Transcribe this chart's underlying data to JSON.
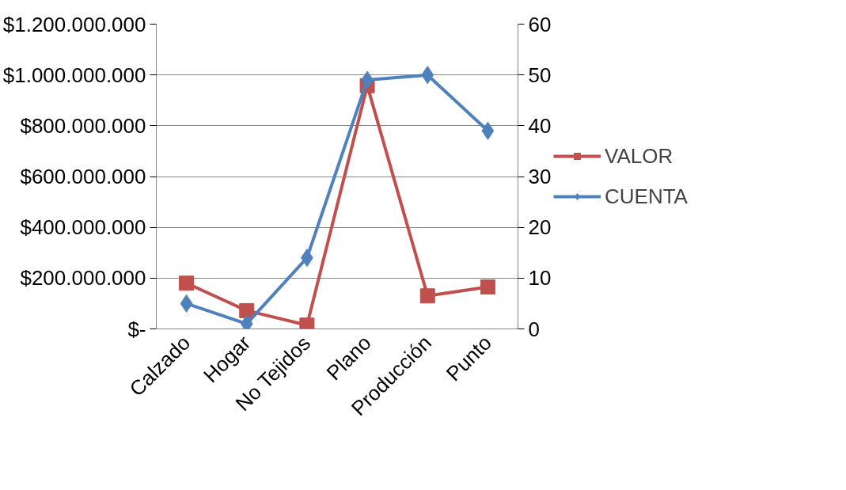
{
  "chart_data": {
    "type": "line",
    "categories": [
      "Calzado",
      "Hogar",
      "No Tejidos",
      "Plano",
      "Producción",
      "Punto"
    ],
    "series": [
      {
        "name": "VALOR",
        "color": "#c0504d",
        "marker": "square",
        "values": [
          180000000,
          72000000,
          15000000,
          958000000,
          130000000,
          165000000
        ]
      },
      {
        "name": "CUENTA",
        "color": "#4f81bd",
        "marker": "diamond",
        "axis": "y2",
        "values": [
          5,
          1,
          14,
          49,
          50,
          39
        ]
      }
    ],
    "ylim": [
      0,
      1200000000
    ],
    "yticks": [
      {
        "value": 0,
        "label": "$-"
      },
      {
        "value": 200000000,
        "label": "$200.000.000"
      },
      {
        "value": 400000000,
        "label": "$400.000.000"
      },
      {
        "value": 600000000,
        "label": "$600.000.000"
      },
      {
        "value": 800000000,
        "label": "$800.000.000"
      },
      {
        "value": 1000000000,
        "label": "$1.000.000.000"
      },
      {
        "value": 1200000000,
        "label": "$1.200.000.000"
      }
    ],
    "y2lim": [
      0,
      60
    ],
    "y2ticks": [
      0,
      10,
      20,
      30,
      40,
      50,
      60
    ],
    "grid": "y",
    "legend": "right",
    "line_style": "solid"
  }
}
